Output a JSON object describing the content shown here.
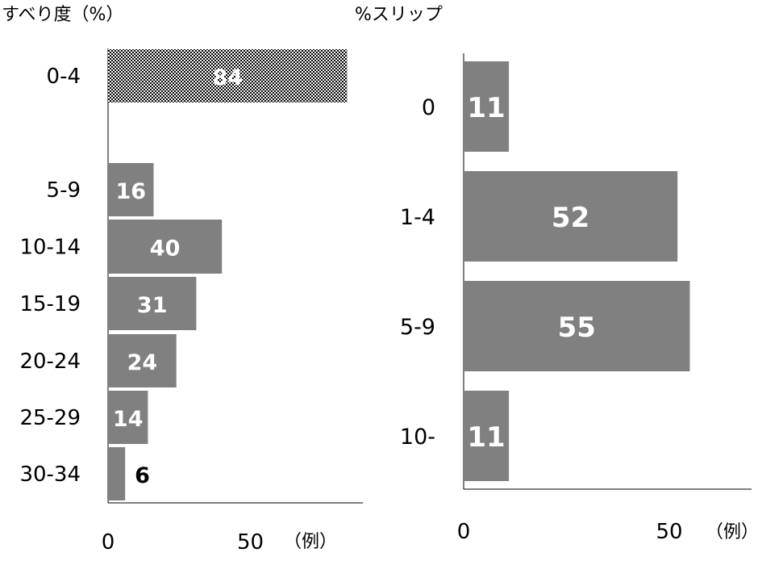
{
  "chart_data": [
    {
      "type": "bar",
      "orientation": "horizontal",
      "title": "すべり度（%）",
      "categories": [
        "0-4",
        "5-9",
        "10-14",
        "15-19",
        "20-24",
        "25-29",
        "30-34"
      ],
      "values": [
        84,
        16,
        40,
        31,
        24,
        14,
        6
      ],
      "x_ticks": [
        "0",
        "50"
      ],
      "x_unit": "（例）",
      "xlim": [
        0,
        90
      ],
      "colors": {
        "bar": "#808080",
        "highlight_pattern": "checker",
        "label_inside": "#ffffff",
        "label_outside": "#000000"
      }
    },
    {
      "type": "bar",
      "orientation": "horizontal",
      "title": "%スリップ",
      "categories": [
        "0",
        "1-4",
        "5-9",
        "10-"
      ],
      "values": [
        11,
        52,
        55,
        11
      ],
      "x_ticks": [
        "0",
        "50"
      ],
      "x_unit": "（例）",
      "xlim": [
        0,
        70
      ],
      "colors": {
        "bar": "#808080",
        "label_inside": "#ffffff"
      }
    }
  ]
}
